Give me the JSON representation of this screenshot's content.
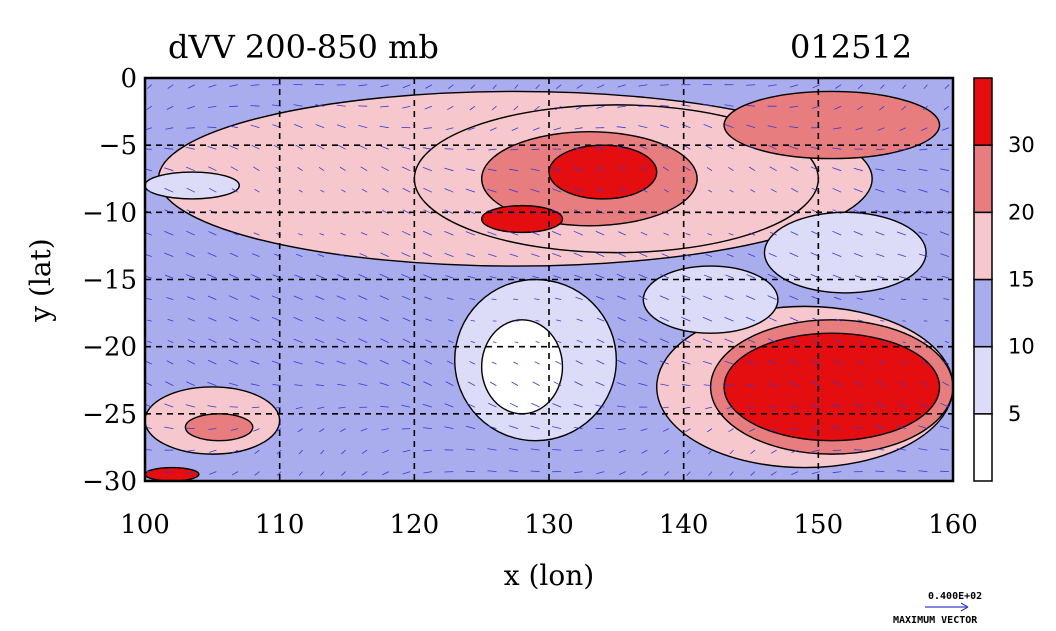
{
  "chart_data": {
    "type": "heatmap",
    "title": "dVV 200-850 mb",
    "subtitle": "012512",
    "xlabel": "x (lon)",
    "ylabel": "y (lat)",
    "xlim": [
      100,
      160
    ],
    "ylim": [
      -30,
      0
    ],
    "x_ticks": [
      100,
      110,
      120,
      130,
      140,
      150,
      160
    ],
    "y_ticks": [
      0,
      -5,
      -10,
      -15,
      -20,
      -25,
      -30
    ],
    "grid": true,
    "colorbar": {
      "levels": [
        0,
        5,
        10,
        15,
        20,
        30,
        35
      ],
      "labels": [
        "5",
        "10",
        "15",
        "20",
        "30"
      ],
      "colors": [
        "#ffffff",
        "#dcdcf8",
        "#a9aced",
        "#f6c7cc",
        "#e87d7f",
        "#e40d10"
      ]
    },
    "annotations": {
      "vector_scale": "0.400E+02",
      "vector_label": "MAXIMUM VECTOR"
    },
    "regions": [
      {
        "lon": [
          100,
          160
        ],
        "lat": [
          -30,
          0
        ],
        "level": 2
      },
      {
        "lon": [
          101,
          154
        ],
        "lat": [
          -14,
          -1
        ],
        "level": 3
      },
      {
        "lon": [
          120,
          150
        ],
        "lat": [
          -13,
          -2
        ],
        "level": 3
      },
      {
        "lon": [
          125,
          141
        ],
        "lat": [
          -11,
          -4
        ],
        "level": 4
      },
      {
        "lon": [
          130,
          138
        ],
        "lat": [
          -9,
          -5
        ],
        "level": 5
      },
      {
        "lon": [
          125,
          131
        ],
        "lat": [
          -11.5,
          -9.5
        ],
        "level": 5
      },
      {
        "lon": [
          138,
          160
        ],
        "lat": [
          -29,
          -17
        ],
        "level": 3
      },
      {
        "lon": [
          142,
          160
        ],
        "lat": [
          -28,
          -18
        ],
        "level": 4
      },
      {
        "lon": [
          143,
          159
        ],
        "lat": [
          -27,
          -19
        ],
        "level": 5
      },
      {
        "lon": [
          100,
          110
        ],
        "lat": [
          -28,
          -23
        ],
        "level": 3
      },
      {
        "lon": [
          103,
          108
        ],
        "lat": [
          -27,
          -25
        ],
        "level": 4
      },
      {
        "lon": [
          100,
          104
        ],
        "lat": [
          -30,
          -29
        ],
        "level": 5
      },
      {
        "lon": [
          123,
          135
        ],
        "lat": [
          -27,
          -15
        ],
        "level": 1
      },
      {
        "lon": [
          125,
          131
        ],
        "lat": [
          -25,
          -18
        ],
        "level": 0
      },
      {
        "lon": [
          146,
          158
        ],
        "lat": [
          -16,
          -10
        ],
        "level": 1
      },
      {
        "lon": [
          137,
          147
        ],
        "lat": [
          -19,
          -14
        ],
        "level": 1
      },
      {
        "lon": [
          100,
          107
        ],
        "lat": [
          -9,
          -7
        ],
        "level": 1
      },
      {
        "lon": [
          143,
          159
        ],
        "lat": [
          -6,
          -1
        ],
        "level": 4
      }
    ]
  }
}
